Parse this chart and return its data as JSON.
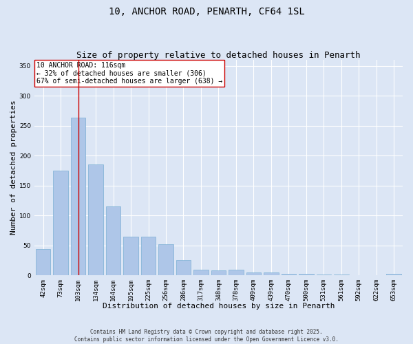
{
  "title_line1": "10, ANCHOR ROAD, PENARTH, CF64 1SL",
  "title_line2": "Size of property relative to detached houses in Penarth",
  "xlabel": "Distribution of detached houses by size in Penarth",
  "ylabel": "Number of detached properties",
  "categories": [
    "42sqm",
    "73sqm",
    "103sqm",
    "134sqm",
    "164sqm",
    "195sqm",
    "225sqm",
    "256sqm",
    "286sqm",
    "317sqm",
    "348sqm",
    "378sqm",
    "409sqm",
    "439sqm",
    "470sqm",
    "500sqm",
    "531sqm",
    "561sqm",
    "592sqm",
    "622sqm",
    "653sqm"
  ],
  "values": [
    44,
    175,
    263,
    185,
    115,
    65,
    65,
    52,
    25,
    9,
    8,
    9,
    5,
    5,
    3,
    2,
    1,
    1,
    0,
    0,
    2
  ],
  "bar_color": "#aec6e8",
  "bar_edgecolor": "#7aafd4",
  "background_color": "#dce6f5",
  "grid_color": "#ffffff",
  "vline_x": 2,
  "vline_color": "#cc0000",
  "annotation_text": "10 ANCHOR ROAD: 116sqm\n← 32% of detached houses are smaller (306)\n67% of semi-detached houses are larger (638) →",
  "annotation_box_edgecolor": "#cc0000",
  "annotation_box_facecolor": "#ffffff",
  "ylim": [
    0,
    360
  ],
  "yticks": [
    0,
    50,
    100,
    150,
    200,
    250,
    300,
    350
  ],
  "footer_text": "Contains HM Land Registry data © Crown copyright and database right 2025.\nContains public sector information licensed under the Open Government Licence v3.0.",
  "title_fontsize": 10,
  "subtitle_fontsize": 9,
  "axis_label_fontsize": 8,
  "tick_fontsize": 6.5,
  "annotation_fontsize": 7
}
